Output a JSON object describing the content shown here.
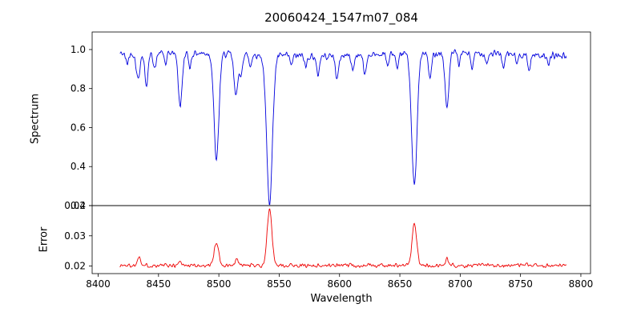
{
  "figure": {
    "title": "20060424_1547m07_084",
    "xlabel": "Wavelength",
    "top_ylabel": "Spectrum",
    "bottom_ylabel": "Error"
  },
  "chart_data": [
    {
      "type": "line",
      "name": "spectrum",
      "title": "20060424_1547m07_084",
      "xlabel": "Wavelength",
      "ylabel": "Spectrum",
      "legend": "none",
      "grid": false,
      "color": "#0000dd",
      "xlim": [
        8395,
        8808
      ],
      "ylim": [
        0.2,
        1.09
      ],
      "x_range": [
        8418,
        8788
      ],
      "y_ticks": [
        {
          "v": 0.2,
          "label": "0.2"
        },
        {
          "v": 0.4,
          "label": "0.4"
        },
        {
          "v": 0.6,
          "label": "0.6"
        },
        {
          "v": 0.8,
          "label": "0.8"
        },
        {
          "v": 1.0,
          "label": "1.0"
        }
      ],
      "continuum": 0.975,
      "noise_amp": 0.022,
      "seed": 42,
      "absorption_features": [
        {
          "center": 8424,
          "depth": 0.05,
          "width": 1.2
        },
        {
          "center": 8433,
          "depth": 0.13,
          "width": 1.5
        },
        {
          "center": 8440,
          "depth": 0.16,
          "width": 1.4
        },
        {
          "center": 8447,
          "depth": 0.08,
          "width": 1.2
        },
        {
          "center": 8456,
          "depth": 0.06,
          "width": 1.0
        },
        {
          "center": 8468,
          "depth": 0.27,
          "width": 1.6
        },
        {
          "center": 8476,
          "depth": 0.07,
          "width": 1.1
        },
        {
          "center": 8498,
          "depth": 0.55,
          "width": 2.0
        },
        {
          "center": 8514,
          "depth": 0.21,
          "width": 1.5
        },
        {
          "center": 8518,
          "depth": 0.12,
          "width": 1.2
        },
        {
          "center": 8526,
          "depth": 0.06,
          "width": 1.0
        },
        {
          "center": 8542,
          "depth": 0.75,
          "width": 2.4
        },
        {
          "center": 8560,
          "depth": 0.05,
          "width": 1.0
        },
        {
          "center": 8572,
          "depth": 0.06,
          "width": 1.0
        },
        {
          "center": 8582,
          "depth": 0.1,
          "width": 1.2
        },
        {
          "center": 8598,
          "depth": 0.12,
          "width": 1.3
        },
        {
          "center": 8611,
          "depth": 0.08,
          "width": 1.1
        },
        {
          "center": 8621,
          "depth": 0.1,
          "width": 1.2
        },
        {
          "center": 8640,
          "depth": 0.06,
          "width": 1.0
        },
        {
          "center": 8648,
          "depth": 0.09,
          "width": 1.1
        },
        {
          "center": 8662,
          "depth": 0.68,
          "width": 2.2
        },
        {
          "center": 8675,
          "depth": 0.13,
          "width": 1.3
        },
        {
          "center": 8689,
          "depth": 0.28,
          "width": 1.6
        },
        {
          "center": 8699,
          "depth": 0.06,
          "width": 1.0
        },
        {
          "center": 8710,
          "depth": 0.08,
          "width": 1.1
        },
        {
          "center": 8722,
          "depth": 0.05,
          "width": 1.0
        },
        {
          "center": 8736,
          "depth": 0.07,
          "width": 1.1
        },
        {
          "center": 8747,
          "depth": 0.05,
          "width": 1.0
        },
        {
          "center": 8757,
          "depth": 0.08,
          "width": 1.1
        },
        {
          "center": 8773,
          "depth": 0.06,
          "width": 1.0
        }
      ]
    },
    {
      "type": "line",
      "name": "error",
      "xlabel": "Wavelength",
      "ylabel": "Error",
      "legend": "none",
      "grid": false,
      "color": "#ee0000",
      "xlim": [
        8395,
        8808
      ],
      "ylim": [
        0.0175,
        0.04
      ],
      "x_range": [
        8418,
        8788
      ],
      "y_ticks": [
        {
          "v": 0.02,
          "label": "0.02"
        },
        {
          "v": 0.03,
          "label": "0.03"
        },
        {
          "v": 0.04,
          "label": "0.04"
        }
      ],
      "baseline": 0.0202,
      "noise_amp": 0.0009,
      "seed": 1337,
      "emission_features": [
        {
          "center": 8434,
          "height": 0.003,
          "width": 1.4
        },
        {
          "center": 8468,
          "height": 0.0015,
          "width": 1.3
        },
        {
          "center": 8498,
          "height": 0.0078,
          "width": 1.8
        },
        {
          "center": 8515,
          "height": 0.0018,
          "width": 1.3
        },
        {
          "center": 8542,
          "height": 0.0185,
          "width": 2.0
        },
        {
          "center": 8662,
          "height": 0.0138,
          "width": 1.9
        },
        {
          "center": 8689,
          "height": 0.002,
          "width": 1.3
        }
      ]
    }
  ],
  "x_axis": {
    "ticks": [
      {
        "v": 8400,
        "label": "8400"
      },
      {
        "v": 8450,
        "label": "8450"
      },
      {
        "v": 8500,
        "label": "8500"
      },
      {
        "v": 8550,
        "label": "8550"
      },
      {
        "v": 8600,
        "label": "8600"
      },
      {
        "v": 8650,
        "label": "8650"
      },
      {
        "v": 8700,
        "label": "8700"
      },
      {
        "v": 8750,
        "label": "8750"
      },
      {
        "v": 8800,
        "label": "8800"
      }
    ]
  }
}
